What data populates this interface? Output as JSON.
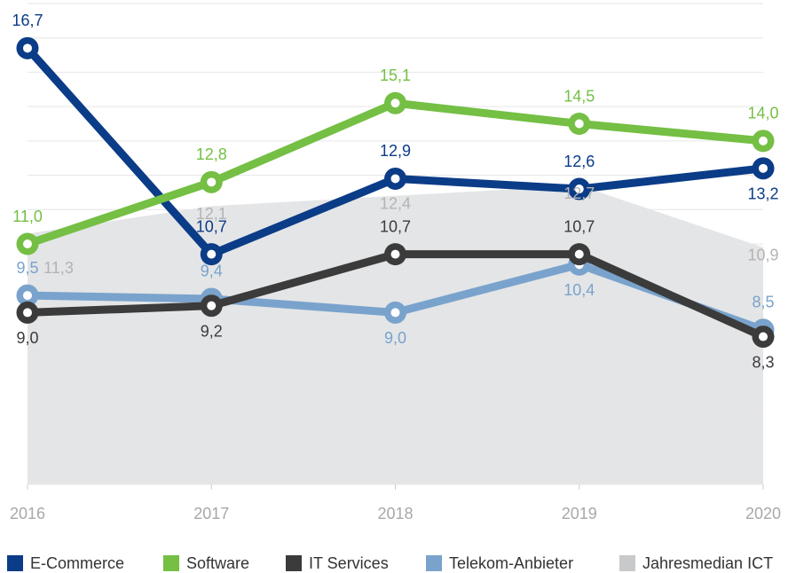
{
  "chart_data": {
    "type": "line",
    "x": [
      2016,
      2017,
      2018,
      2019,
      2020
    ],
    "xlim": [
      2016,
      2020
    ],
    "ylim": [
      4,
      18
    ],
    "yticks": [
      5,
      6,
      7,
      8,
      9,
      10,
      11,
      12,
      13,
      14,
      15,
      16,
      17,
      18
    ],
    "grid": true,
    "legend": "bottom",
    "series": [
      {
        "name": "Jahresmedian ICT",
        "color": "#c8c9cb",
        "area": true,
        "values": [
          11.3,
          12.1,
          12.4,
          12.7,
          10.9
        ],
        "value_labels": [
          "11,3",
          "12,1",
          "12,4",
          "12,7",
          "10,9"
        ]
      },
      {
        "name": "Telekom-Anbieter",
        "color": "#79a3cc",
        "values": [
          9.5,
          9.4,
          9.0,
          10.4,
          8.5
        ],
        "value_labels": [
          "9,5",
          "9,4",
          "9,0",
          "10,4",
          "8,5"
        ]
      },
      {
        "name": "IT Services",
        "color": "#3b3b3b",
        "values": [
          9.0,
          9.2,
          10.7,
          10.7,
          8.3
        ],
        "value_labels": [
          "9,0",
          "9,2",
          "10,7",
          "10,7",
          "8,3"
        ]
      },
      {
        "name": "E-Commerce",
        "color": "#0b3c87",
        "values": [
          16.7,
          10.7,
          12.9,
          12.6,
          13.2
        ],
        "value_labels": [
          "16,7",
          "10,7",
          "12,9",
          "12,6",
          "13,2"
        ]
      },
      {
        "name": "Software",
        "color": "#74bf44",
        "values": [
          11.0,
          12.8,
          15.1,
          14.5,
          14.0
        ],
        "value_labels": [
          "11,0",
          "12,8",
          "15,1",
          "14,5",
          "14,0"
        ]
      }
    ]
  }
}
